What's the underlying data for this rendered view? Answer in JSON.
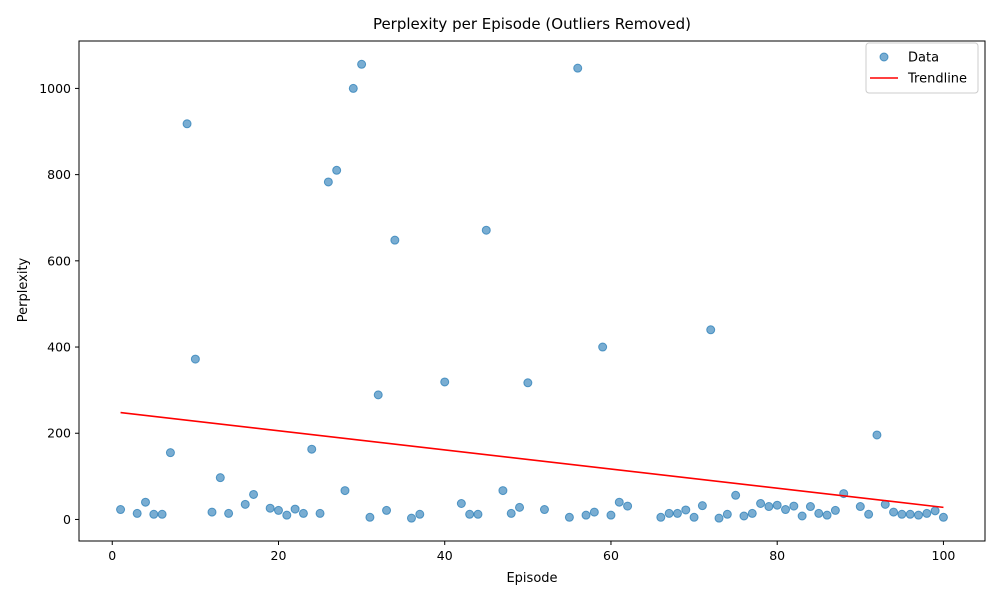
{
  "chart_data": {
    "type": "scatter",
    "title": "Perplexity per Episode (Outliers Removed)",
    "xlabel": "Episode",
    "ylabel": "Perplexity",
    "xlim": [
      -4,
      105
    ],
    "ylim": [
      -50,
      1110
    ],
    "xticks": [
      0,
      20,
      40,
      60,
      80,
      100
    ],
    "yticks": [
      0,
      200,
      400,
      600,
      800,
      1000
    ],
    "grid": false,
    "legend_position": "top-right",
    "colors": {
      "points": "#1f77b4",
      "trendline": "#ff0000"
    },
    "series": [
      {
        "name": "Data",
        "type": "scatter",
        "points": [
          [
            1,
            23
          ],
          [
            3,
            14
          ],
          [
            4,
            40
          ],
          [
            5,
            12
          ],
          [
            6,
            12
          ],
          [
            7,
            155
          ],
          [
            9,
            918
          ],
          [
            10,
            372
          ],
          [
            12,
            17
          ],
          [
            13,
            97
          ],
          [
            14,
            14
          ],
          [
            16,
            35
          ],
          [
            17,
            58
          ],
          [
            19,
            26
          ],
          [
            20,
            21
          ],
          [
            21,
            10
          ],
          [
            22,
            24
          ],
          [
            23,
            14
          ],
          [
            24,
            163
          ],
          [
            25,
            14
          ],
          [
            26,
            783
          ],
          [
            27,
            810
          ],
          [
            28,
            67
          ],
          [
            29,
            1000
          ],
          [
            30,
            1056
          ],
          [
            31,
            5
          ],
          [
            32,
            289
          ],
          [
            33,
            21
          ],
          [
            34,
            648
          ],
          [
            36,
            3
          ],
          [
            37,
            12
          ],
          [
            40,
            319
          ],
          [
            42,
            37
          ],
          [
            43,
            12
          ],
          [
            44,
            12
          ],
          [
            45,
            671
          ],
          [
            47,
            67
          ],
          [
            48,
            14
          ],
          [
            49,
            28
          ],
          [
            50,
            317
          ],
          [
            52,
            23
          ],
          [
            55,
            5
          ],
          [
            56,
            1047
          ],
          [
            57,
            10
          ],
          [
            58,
            17
          ],
          [
            59,
            400
          ],
          [
            60,
            10
          ],
          [
            61,
            40
          ],
          [
            62,
            31
          ],
          [
            66,
            5
          ],
          [
            67,
            14
          ],
          [
            68,
            14
          ],
          [
            69,
            22
          ],
          [
            70,
            5
          ],
          [
            71,
            32
          ],
          [
            72,
            440
          ],
          [
            73,
            3
          ],
          [
            74,
            12
          ],
          [
            75,
            56
          ],
          [
            76,
            8
          ],
          [
            77,
            14
          ],
          [
            78,
            37
          ],
          [
            79,
            30
          ],
          [
            80,
            33
          ],
          [
            81,
            23
          ],
          [
            82,
            31
          ],
          [
            83,
            8
          ],
          [
            84,
            30
          ],
          [
            85,
            14
          ],
          [
            86,
            10
          ],
          [
            87,
            21
          ],
          [
            88,
            60
          ],
          [
            90,
            30
          ],
          [
            91,
            12
          ],
          [
            92,
            196
          ],
          [
            93,
            35
          ],
          [
            94,
            17
          ],
          [
            95,
            12
          ],
          [
            96,
            12
          ],
          [
            97,
            10
          ],
          [
            98,
            14
          ],
          [
            99,
            20
          ],
          [
            100,
            5
          ]
        ]
      },
      {
        "name": "Trendline",
        "type": "line",
        "points": [
          [
            1,
            248
          ],
          [
            100,
            28
          ]
        ]
      }
    ]
  }
}
